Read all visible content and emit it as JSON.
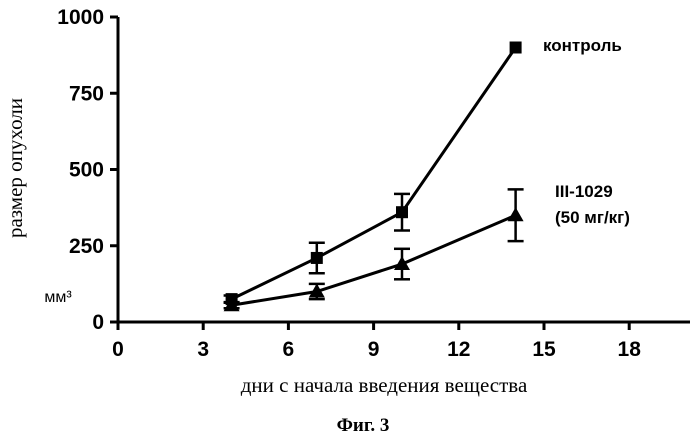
{
  "chart_data": {
    "type": "line",
    "xlabel": "дни с начала введения вещества",
    "ylabel": "размер опухоли",
    "yunit": "мм³",
    "caption": "Фиг. 3",
    "xlim": [
      0,
      20
    ],
    "ylim": [
      0,
      1000
    ],
    "xticks": [
      0,
      3,
      6,
      9,
      12,
      15,
      18
    ],
    "yticks": [
      0,
      250,
      500,
      750,
      1000
    ],
    "grid": false,
    "series": [
      {
        "name": "контроль",
        "marker": "square",
        "x": [
          4,
          7,
          10,
          14
        ],
        "y": [
          75,
          210,
          360,
          900
        ],
        "error": [
          12,
          50,
          60,
          0
        ]
      },
      {
        "name": "III-1029\n(50 мг/кг)",
        "name_lines": [
          "III-1029",
          "(50 мг/кг)"
        ],
        "marker": "triangle",
        "x": [
          4,
          7,
          10,
          14
        ],
        "y": [
          55,
          100,
          190,
          350
        ],
        "error": [
          10,
          25,
          50,
          85
        ]
      }
    ]
  }
}
